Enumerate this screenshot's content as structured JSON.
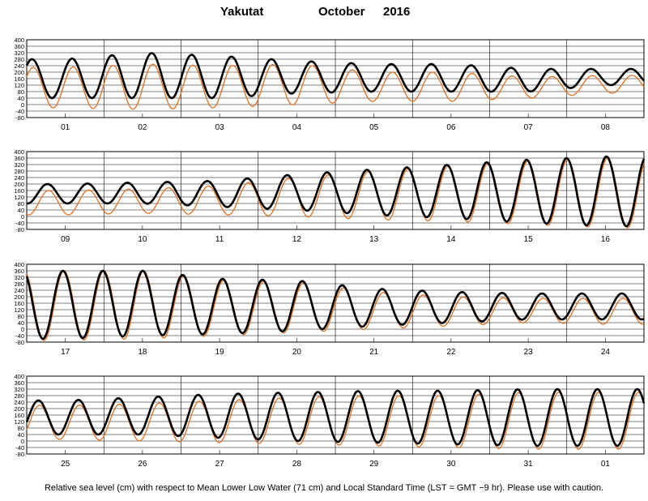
{
  "header": {
    "station": "Yakutat",
    "month": "October",
    "year": "2016"
  },
  "footer": {
    "note": "Relative sea level (cm) with respect to Mean Lower Low Water (71 cm) and Local Standard Time (LST = GMT −9 hr). Please use with caution."
  },
  "chart_data": [
    {
      "type": "line",
      "x_tick_labels": [
        "01",
        "02",
        "03",
        "04",
        "05",
        "06",
        "07",
        "08"
      ],
      "y_tick_labels": [
        "400",
        "360",
        "320",
        "280",
        "240",
        "200",
        "160",
        "120",
        "80",
        "40",
        "0",
        "-40",
        "-80"
      ],
      "ylim": [
        -80,
        400
      ],
      "grid": true,
      "series": [
        {
          "color": "#000000",
          "values": [
            280,
            320,
            300,
            270,
            250,
            250,
            220,
            220
          ],
          "lows": [
            40,
            40,
            40,
            70,
            80,
            80,
            80,
            120
          ]
        },
        {
          "color": "#e07020",
          "values": [
            230,
            250,
            240,
            250,
            200,
            200,
            170,
            180
          ],
          "lows": [
            -20,
            -30,
            -20,
            0,
            20,
            20,
            40,
            70
          ]
        }
      ]
    },
    {
      "type": "line",
      "x_tick_labels": [
        "09",
        "10",
        "11",
        "12",
        "13",
        "14",
        "15",
        "16"
      ],
      "y_tick_labels": [
        "400",
        "360",
        "320",
        "280",
        "240",
        "200",
        "160",
        "120",
        "80",
        "40",
        "0",
        "-40",
        "-80"
      ],
      "ylim": [
        -80,
        400
      ],
      "grid": true,
      "series": [
        {
          "color": "#000000",
          "values": [
            200,
            210,
            220,
            260,
            290,
            320,
            350,
            370
          ],
          "lows": [
            80,
            80,
            60,
            40,
            10,
            -10,
            -40,
            -60
          ]
        },
        {
          "color": "#e07020",
          "values": [
            160,
            170,
            190,
            240,
            280,
            310,
            340,
            360
          ],
          "lows": [
            10,
            20,
            10,
            0,
            -20,
            -30,
            -50,
            -70
          ]
        }
      ]
    },
    {
      "type": "line",
      "x_tick_labels": [
        "17",
        "18",
        "19",
        "20",
        "21",
        "22",
        "23",
        "24"
      ],
      "y_tick_labels": [
        "400",
        "360",
        "320",
        "280",
        "240",
        "200",
        "160",
        "120",
        "80",
        "40",
        "0",
        "-40",
        "-80"
      ],
      "ylim": [
        -80,
        400
      ],
      "grid": true,
      "series": [
        {
          "color": "#000000",
          "values": [
            360,
            360,
            310,
            300,
            250,
            230,
            220,
            220
          ],
          "lows": [
            -60,
            -40,
            -30,
            -10,
            20,
            40,
            60,
            60
          ]
        },
        {
          "color": "#e07020",
          "values": [
            360,
            360,
            300,
            290,
            230,
            200,
            190,
            190
          ],
          "lows": [
            -70,
            -60,
            -40,
            -20,
            0,
            20,
            40,
            30
          ]
        }
      ]
    },
    {
      "type": "line",
      "x_tick_labels": [
        "25",
        "26",
        "27",
        "28",
        "29",
        "30",
        "31",
        "01"
      ],
      "y_tick_labels": [
        "400",
        "360",
        "320",
        "280",
        "240",
        "200",
        "160",
        "120",
        "80",
        "40",
        "0",
        "-40",
        "-80"
      ],
      "ylim": [
        -80,
        400
      ],
      "grid": true,
      "series": [
        {
          "color": "#000000",
          "values": [
            250,
            270,
            290,
            300,
            310,
            310,
            320,
            320
          ],
          "lows": [
            40,
            40,
            20,
            0,
            -10,
            -20,
            -30,
            -30
          ]
        },
        {
          "color": "#e07020",
          "values": [
            220,
            230,
            250,
            270,
            280,
            280,
            300,
            300
          ],
          "lows": [
            10,
            0,
            -10,
            -20,
            -30,
            -40,
            -50,
            -50
          ]
        }
      ]
    }
  ]
}
